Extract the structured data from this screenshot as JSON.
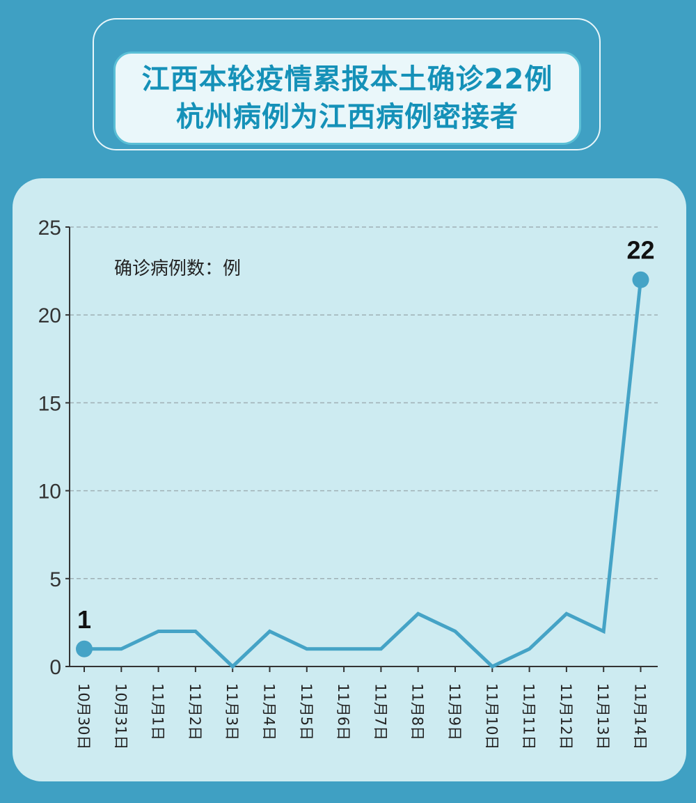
{
  "header": {
    "title_line1": "江西本轮疫情累报本土确诊22例",
    "title_line2": "杭州病例为江西病例密接者"
  },
  "colors": {
    "background": "#3fa0c3",
    "panel": "#cdebf1",
    "line": "#45a3c6",
    "title_text": "#1591b8"
  },
  "chart_data": {
    "type": "line",
    "unit_label": "确诊病例数：例",
    "categories": [
      "10月30日",
      "10月31日",
      "11月1日",
      "11月2日",
      "11月3日",
      "11月4日",
      "11月5日",
      "11月6日",
      "11月7日",
      "11月8日",
      "11月9日",
      "11月10日",
      "11月11日",
      "11月12日",
      "11月13日",
      "11月14日"
    ],
    "series": [
      {
        "values": [
          1,
          1,
          2,
          2,
          0,
          2,
          1,
          1,
          1,
          3,
          2,
          0,
          1,
          3,
          2,
          22
        ]
      }
    ],
    "ylim": [
      0,
      25
    ],
    "yticks": [
      0,
      5,
      10,
      15,
      20,
      25
    ],
    "grid": true,
    "data_labels": [
      {
        "index": 0,
        "text": "1"
      },
      {
        "index": 15,
        "text": "22"
      }
    ]
  }
}
